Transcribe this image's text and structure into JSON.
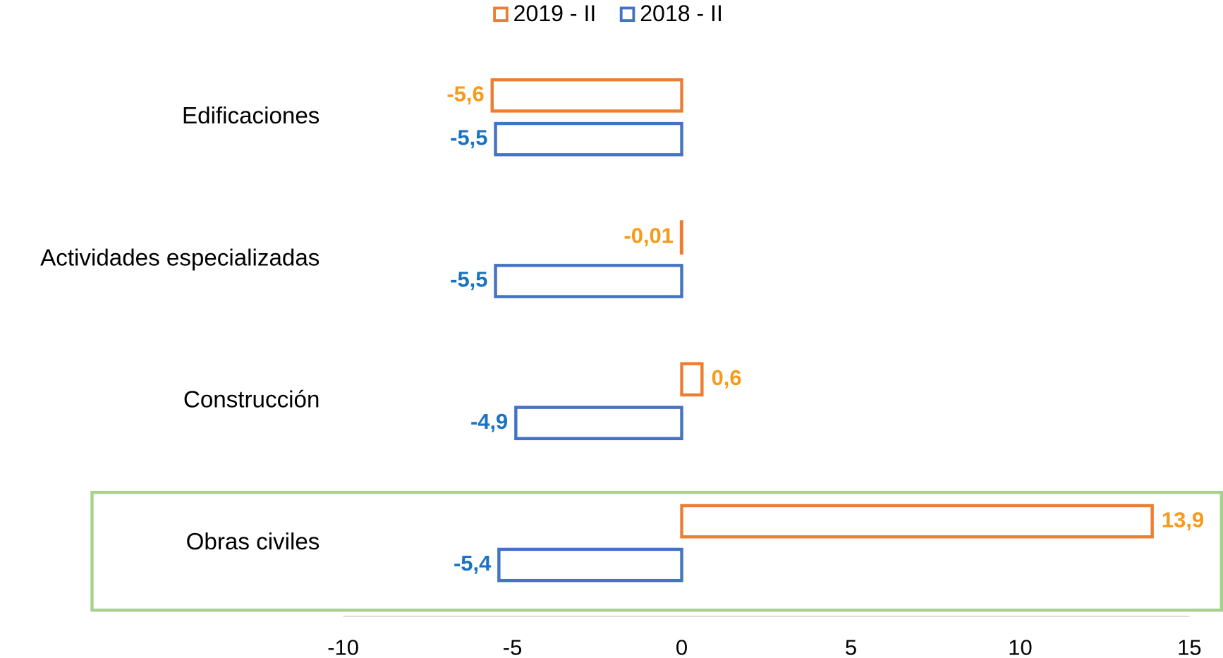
{
  "chart_data": {
    "type": "hbar",
    "categories": [
      "Edificaciones",
      "Actividades especializadas",
      "Construcción",
      "Obras civiles"
    ],
    "series": [
      {
        "name": "2019 - II",
        "color": "#ED7D31",
        "label_color": "#F59A1B",
        "values": [
          -5.6,
          -0.01,
          0.6,
          13.9
        ],
        "value_labels": [
          "-5,6",
          "-0,01",
          "0,6",
          "13,9"
        ]
      },
      {
        "name": "2018 - II",
        "color": "#4472C4",
        "label_color": "#1A73C0",
        "values": [
          -5.5,
          -5.5,
          -4.9,
          -5.4
        ],
        "value_labels": [
          "-5,5",
          "-5,5",
          "-4,9",
          "-5,4"
        ]
      }
    ],
    "xlim": [
      -10,
      15
    ],
    "xticks": [
      -10,
      -5,
      0,
      5,
      10,
      15
    ],
    "legend": "top"
  }
}
